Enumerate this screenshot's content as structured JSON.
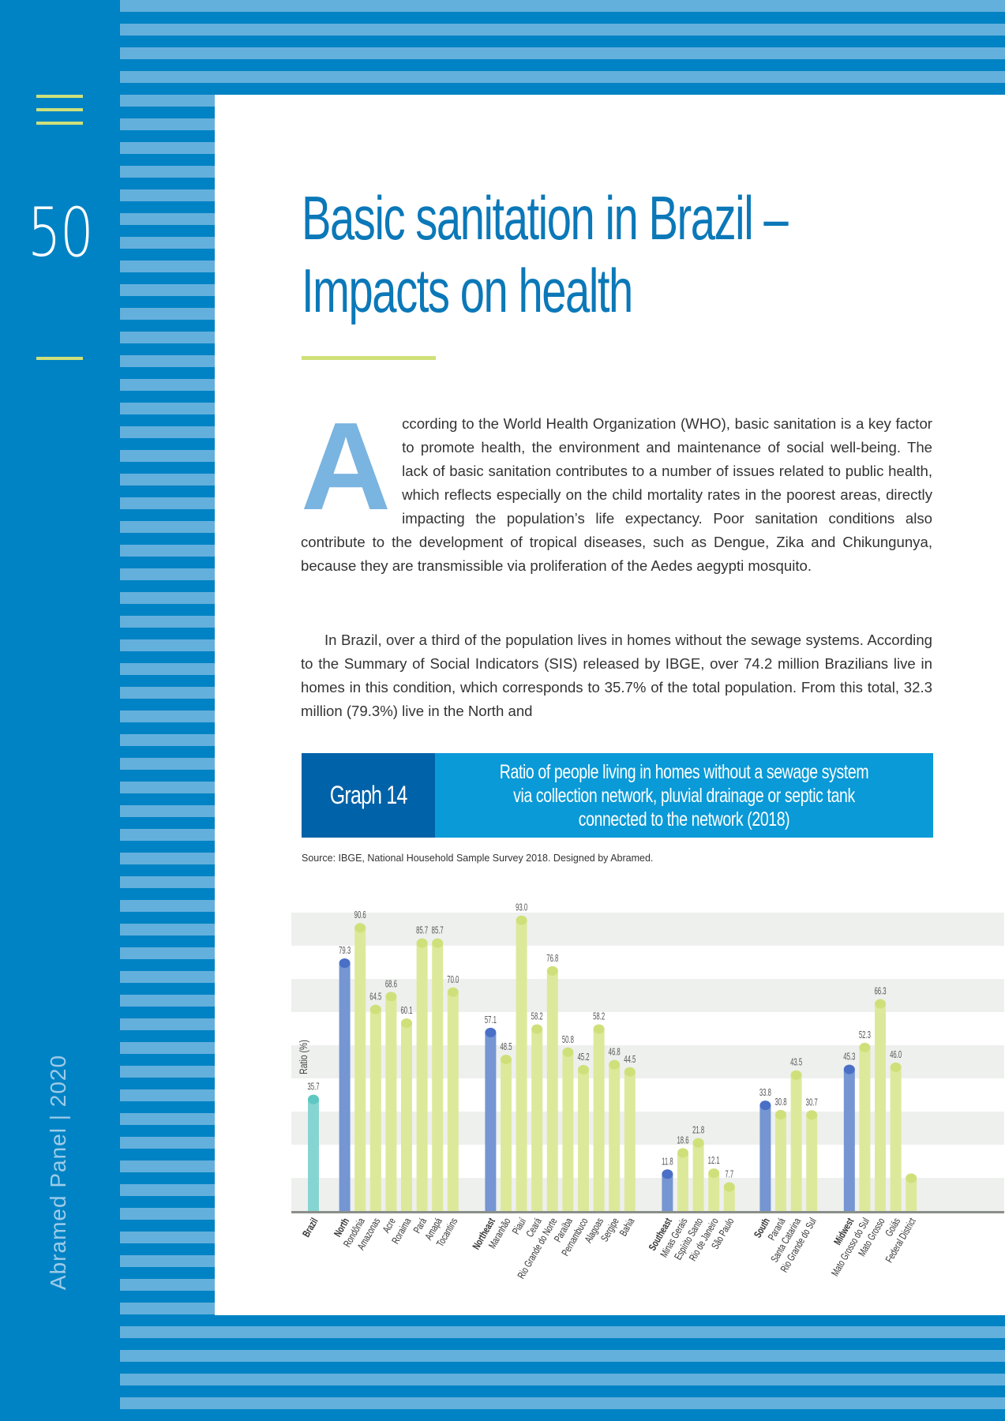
{
  "sidebar": {
    "page_number": "50",
    "footer_label": "Abramed Panel  |  2020"
  },
  "article": {
    "title_line1": "Basic sanitation in Brazil –",
    "title_line2": "Impacts on health",
    "dropcap": "A",
    "p1_rest": "ccording to the World Health Organization (WHO), basic sanitation is a key factor to promote health, the environment and maintenance of social well-being. The lack of basic sanitation contributes to a number of issues related to public health, which reflects especially on the child mortality rates in the poorest areas, directly impacting the population’s life expectancy. Poor sanitation conditions also contribute to the development of tropical diseases, such as Dengue, Zika and Chikungunya, because they are transmissible via proliferation of the Aedes aegypti mosquito.",
    "p2": "In Brazil, over a third of the population lives in homes without the sewage systems. According to the Summary of Social Indicators (SIS) released by IBGE, over 74.2 million Brazilians live in homes in this condition, which corresponds to 35.7% of the total population. From this total, 32.3 million (79.3%) live in the North and"
  },
  "graph": {
    "tag": "Graph 14",
    "title": "Ratio of people living in homes without a sewage system via collection network, pluvial drainage or septic tank connected to the network (2018)",
    "source": "Source: IBGE, National Household Sample Survey 2018. Designed by Abramed."
  },
  "colors": {
    "brazil": "#7fd3d0",
    "region": "#6e8fd1",
    "state": "#dde99a",
    "accent": "#cfe07a",
    "blue": "#0083c4"
  },
  "chart_data": {
    "type": "bar",
    "ylabel": "Ratio (%)",
    "ylim": [
      0,
      100
    ],
    "grid": "alternating horizontal bands",
    "bars": [
      {
        "label": "Brazil",
        "value": 35.7,
        "kind": "brazil",
        "label_text": "35.7"
      },
      {
        "label": "North",
        "value": 79.3,
        "kind": "region",
        "label_text": "79.3"
      },
      {
        "label": "Rondônia",
        "value": 90.6,
        "kind": "state",
        "label_text": "90.6"
      },
      {
        "label": "Amazonas",
        "value": 64.5,
        "kind": "state",
        "label_text": "64.5"
      },
      {
        "label": "Acre",
        "value": 68.6,
        "kind": "state",
        "label_text": "68.6"
      },
      {
        "label": "Roraima",
        "value": 60.1,
        "kind": "state",
        "label_text": "60.1"
      },
      {
        "label": "Pará",
        "value": 85.7,
        "kind": "state",
        "label_text": "85.7"
      },
      {
        "label": "Amapá",
        "value": 85.7,
        "kind": "state",
        "label_text": "85.7"
      },
      {
        "label": "Tocantins",
        "value": 70.0,
        "kind": "state",
        "label_text": "70.0"
      },
      {
        "label": "Northeast",
        "value": 57.1,
        "kind": "region",
        "label_text": "57.1"
      },
      {
        "label": "Maranhão",
        "value": 48.5,
        "kind": "state",
        "label_text": "48.5"
      },
      {
        "label": "Piauí",
        "value": 93.0,
        "kind": "state",
        "label_text": "93.0"
      },
      {
        "label": "Ceará",
        "value": 58.2,
        "kind": "state",
        "label_text": "58.2"
      },
      {
        "label": "Rio Grande do Norte",
        "value": 76.8,
        "kind": "state",
        "label_text": "76.8"
      },
      {
        "label": "Paraíba",
        "value": 50.8,
        "kind": "state",
        "label_text": "50.8"
      },
      {
        "label": "Pernambuco",
        "value": 45.2,
        "kind": "state",
        "label_text": "45.2"
      },
      {
        "label": "Alagoas",
        "value": 58.2,
        "kind": "state",
        "label_text": "58.2"
      },
      {
        "label": "Sergipe",
        "value": 46.8,
        "kind": "state",
        "label_text": "46.8"
      },
      {
        "label": "Bahia",
        "value": 44.5,
        "kind": "state",
        "label_text": "44.5"
      },
      {
        "label": "Southeast",
        "value": 11.8,
        "kind": "region",
        "label_text": "11.8"
      },
      {
        "label": "Minas Gerais",
        "value": 18.6,
        "kind": "state",
        "label_text": "18.6"
      },
      {
        "label": "Espírito Santo",
        "value": 21.8,
        "kind": "state",
        "label_text": "21.8"
      },
      {
        "label": "Rio de Janeiro",
        "value": 12.1,
        "kind": "state",
        "label_text": "12.1"
      },
      {
        "label": "São Paulo",
        "value": 7.7,
        "kind": "state",
        "label_text": "7.7"
      },
      {
        "label": "South",
        "value": 33.8,
        "kind": "region",
        "label_text": "33.8"
      },
      {
        "label": "Paraná",
        "value": 30.8,
        "kind": "state",
        "label_text": "30.8"
      },
      {
        "label": "Santa Catarina",
        "value": 43.5,
        "kind": "state",
        "label_text": "43.5"
      },
      {
        "label": "Rio Grande do Sul",
        "value": 30.7,
        "kind": "state",
        "label_text": "30.7"
      },
      {
        "label": "Midwest",
        "value": 45.3,
        "kind": "region",
        "label_text": "45.3"
      },
      {
        "label": "Mato Grosso do Sul",
        "value": 52.3,
        "kind": "state",
        "label_text": "52.3"
      },
      {
        "label": "Mato Grosso",
        "value": 66.3,
        "kind": "state",
        "label_text": "66.3"
      },
      {
        "label": "Goiás",
        "value": 46.0,
        "kind": "state",
        "label_text": "46.0"
      },
      {
        "label": "Federal District",
        "value": 10.5,
        "kind": "state"
      }
    ]
  }
}
